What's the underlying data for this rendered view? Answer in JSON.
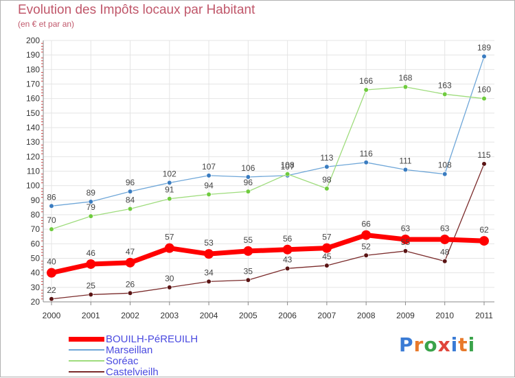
{
  "header": {
    "title": "Evolution des Impôts locaux par Habitant",
    "subtitle": "(en € et par an)"
  },
  "logo": {
    "letters": [
      "P",
      "r",
      "o",
      "x",
      "i",
      "t",
      "i"
    ],
    "colors": [
      "#3a7bd5",
      "#e8792b",
      "#3aa34a",
      "#e0453a",
      "#3a7bd5",
      "#e8792b",
      "#3aa34a"
    ]
  },
  "chart_data": {
    "type": "line",
    "title": "Evolution des Impôts locaux par Habitant",
    "subtitle": "(en € et par an)",
    "xlabel": "",
    "ylabel": "",
    "ylim": [
      20,
      200
    ],
    "grid": true,
    "legend_position": "bottom-left",
    "x": [
      "2000",
      "2001",
      "2002",
      "2003",
      "2004",
      "2005",
      "2006",
      "2007",
      "2008",
      "2009",
      "2010",
      "2011"
    ],
    "yticks": [
      "20",
      "30",
      "40",
      "50",
      "60",
      "70",
      "80",
      "90",
      "100",
      "110",
      "120",
      "130",
      "140",
      "150",
      "160",
      "170",
      "180",
      "190",
      "200"
    ],
    "series": [
      {
        "name": "BOUILH-PéREUILH",
        "values": [
          40,
          46,
          47,
          57,
          53,
          55,
          56,
          57,
          66,
          63,
          63,
          62
        ],
        "labels": [
          "40",
          "46",
          "47",
          "57",
          "53",
          "55",
          "56",
          "57",
          "66",
          "63",
          "63",
          "62"
        ],
        "color": "#ff0000",
        "marker": "#ff0000",
        "emphasis": true
      },
      {
        "name": "Marseillan",
        "values": [
          86,
          89,
          96,
          102,
          107,
          106,
          107,
          113,
          116,
          111,
          108,
          189
        ],
        "labels": [
          "86",
          "89",
          "96",
          "102",
          "107",
          "106",
          "107",
          "113",
          "116",
          "111",
          "108",
          "189"
        ],
        "color": "#6ea6d8",
        "marker": "#3a7cc0",
        "emphasis": false
      },
      {
        "name": "Soréac",
        "values": [
          70,
          79,
          84,
          91,
          94,
          96,
          108,
          98,
          166,
          168,
          163,
          160
        ],
        "labels": [
          "70",
          "79",
          "84",
          "91",
          "94",
          "96",
          "108",
          "98",
          "166",
          "168",
          "163",
          "160"
        ],
        "color": "#9edc7c",
        "marker": "#6fcb3e",
        "emphasis": false
      },
      {
        "name": "Castelvieilh",
        "values": [
          22,
          25,
          26,
          30,
          34,
          35,
          43,
          45,
          52,
          55,
          48,
          115
        ],
        "labels": [
          "22",
          "25",
          "26",
          "30",
          "34",
          "35",
          "43",
          "45",
          "52",
          "55",
          "48",
          "115"
        ],
        "color": "#7a2a2a",
        "marker": "#5a1414",
        "emphasis": false
      }
    ]
  }
}
